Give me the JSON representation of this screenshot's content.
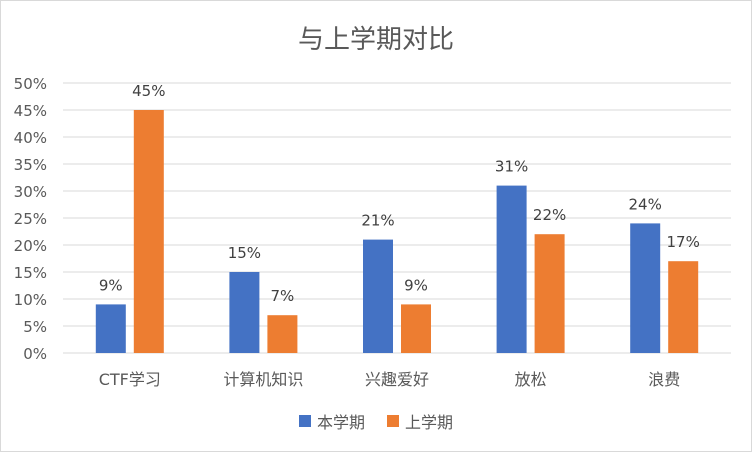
{
  "chart_data": {
    "type": "bar",
    "title": "与上学期对比",
    "categories": [
      "CTF学习",
      "计算机知识",
      "兴趣爱好",
      "放松",
      "浪费"
    ],
    "series": [
      {
        "name": "本学期",
        "values": [
          9,
          15,
          21,
          31,
          24
        ],
        "labels": [
          "9%",
          "15%",
          "21%",
          "31%",
          "24%"
        ],
        "color": "#4472C4"
      },
      {
        "name": "上学期",
        "values": [
          45,
          7,
          9,
          22,
          17
        ],
        "labels": [
          "45%",
          "7%",
          "9%",
          "22%",
          "17%"
        ],
        "color": "#ED7D31"
      }
    ],
    "ylim": [
      0,
      50
    ],
    "yticks": [
      "0%",
      "5%",
      "10%",
      "15%",
      "20%",
      "25%",
      "30%",
      "35%",
      "40%",
      "45%",
      "50%"
    ],
    "grid": true,
    "legend": "bottom"
  }
}
